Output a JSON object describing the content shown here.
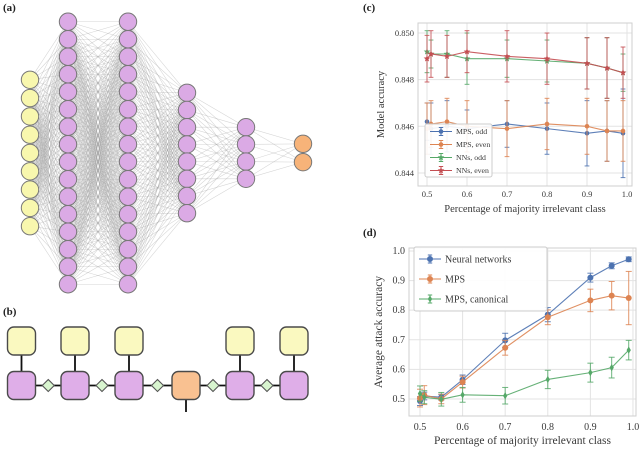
{
  "panels": {
    "a": {
      "label": "(a)"
    },
    "b": {
      "label": "(b)"
    },
    "c": {
      "label": "(c)"
    },
    "d": {
      "label": "(d)"
    }
  },
  "network_diagram": {
    "node_colors": {
      "input": "#f8f7ae",
      "hidden": "#dbaae5",
      "output": "#f7b379"
    },
    "node_border_color": "#787878",
    "edge_color": "#999999",
    "layers": [
      {
        "name": "input-layer",
        "type": "input",
        "count": 9
      },
      {
        "name": "hidden-layer-1",
        "type": "hidden",
        "count": 16
      },
      {
        "name": "hidden-layer-2",
        "type": "hidden",
        "count": 16
      },
      {
        "name": "hidden-layer-3",
        "type": "hidden",
        "count": 8
      },
      {
        "name": "hidden-layer-4",
        "type": "hidden",
        "count": 4
      },
      {
        "name": "output-layer",
        "type": "output",
        "count": 2
      }
    ]
  },
  "tensor_diagram": {
    "colors": {
      "site": "#dfaee8",
      "center_site": "#f9c191",
      "physical_site": "#faf9c0",
      "bond": "#d8f5cf",
      "border": "#4a4a4a",
      "line": "#111111"
    },
    "sites": [
      {
        "type": "site",
        "top_leg": true,
        "bottom_leg": false
      },
      {
        "type": "site",
        "top_leg": true,
        "bottom_leg": false
      },
      {
        "type": "site",
        "top_leg": true,
        "bottom_leg": false
      },
      {
        "type": "center_site",
        "top_leg": false,
        "bottom_leg": true
      },
      {
        "type": "site",
        "top_leg": true,
        "bottom_leg": false
      },
      {
        "type": "site",
        "top_leg": true,
        "bottom_leg": false
      }
    ],
    "bond_count": 5
  },
  "chart_data": [
    {
      "id": "c",
      "type": "line",
      "title": "",
      "xlabel": "Percentage of majority irrelevant class",
      "ylabel": "Model accuracy",
      "grid": true,
      "legend_position": "lower-left",
      "xlim": [
        0.4775,
        1.0125
      ],
      "ylim": [
        0.84344,
        0.85043
      ],
      "xticks": [
        0.5,
        0.6,
        0.7,
        0.8,
        0.9,
        1.0
      ],
      "xtick_labels": [
        "0.5",
        "0.6",
        "0.7",
        "0.8",
        "0.9",
        "1.0"
      ],
      "yticks": [
        0.844,
        0.846,
        0.848,
        0.85
      ],
      "ytick_labels": [
        "0.844",
        "0.846",
        "0.848",
        "0.850"
      ],
      "x": [
        0.5,
        0.51,
        0.55,
        0.6,
        0.7,
        0.8,
        0.9,
        0.95,
        0.99
      ],
      "series": [
        {
          "name": "MPS, odd",
          "color": "#4c72b0",
          "marker": "circle",
          "values": [
            0.8462,
            0.8459,
            0.846,
            0.8459,
            0.8461,
            0.8459,
            0.8457,
            0.8458,
            0.8457
          ],
          "yerr": [
            0.0008,
            0.0011,
            0.0011,
            0.0008,
            0.001,
            0.0011,
            0.0014,
            0.0013,
            0.0019
          ]
        },
        {
          "name": "MPS, even",
          "color": "#dd8452",
          "marker": "circle",
          "values": [
            0.8459,
            0.8461,
            0.8462,
            0.846,
            0.8459,
            0.8461,
            0.846,
            0.8458,
            0.8458
          ],
          "yerr": [
            0.0011,
            0.001,
            0.001,
            0.0011,
            0.0012,
            0.0011,
            0.0012,
            0.0013,
            0.0013
          ]
        },
        {
          "name": "NNs, odd",
          "color": "#55a868",
          "marker": "star",
          "values": [
            0.8492,
            0.8491,
            0.8491,
            0.8489,
            0.8489,
            0.8488,
            0.8487,
            0.8485,
            0.8483
          ],
          "yerr": [
            0.0009,
            0.0006,
            0.001,
            0.0011,
            0.0008,
            0.0009,
            0.0011,
            0.0013,
            0.0008
          ]
        },
        {
          "name": "NNs, even",
          "color": "#c44e52",
          "marker": "star",
          "values": [
            0.8489,
            0.8491,
            0.849,
            0.8492,
            0.849,
            0.8489,
            0.8487,
            0.8485,
            0.8483
          ],
          "yerr": [
            0.001,
            0.001,
            0.0009,
            0.0009,
            0.0011,
            0.0011,
            0.0011,
            0.0013,
            0.0011
          ]
        }
      ]
    },
    {
      "id": "d",
      "type": "line",
      "title": "",
      "xlabel": "Percentage of majority irrelevant class",
      "ylabel": "Average attack accuracy",
      "grid": true,
      "legend_position": "upper-left",
      "xlim": [
        0.4742,
        1.0071
      ],
      "ylim": [
        0.4425,
        1.0101
      ],
      "xticks": [
        0.5,
        0.6,
        0.7,
        0.8,
        0.9,
        1.0
      ],
      "xtick_labels": [
        "0.5",
        "0.6",
        "0.7",
        "0.8",
        "0.9",
        "1.0"
      ],
      "yticks": [
        0.5,
        0.6,
        0.7,
        0.8,
        0.9,
        1.0
      ],
      "ytick_labels": [
        "0.5",
        "0.6",
        "0.7",
        "0.8",
        "0.9",
        "1.0"
      ],
      "x": [
        0.5,
        0.51,
        0.55,
        0.6,
        0.7,
        0.8,
        0.9,
        0.95,
        0.99
      ],
      "series": [
        {
          "name": "Neural networks",
          "color": "#4c72b0",
          "marker": "circle",
          "values": [
            0.493,
            0.51,
            0.506,
            0.565,
            0.698,
            0.785,
            0.91,
            0.95,
            0.972
          ],
          "yerr": [
            0.015,
            0.013,
            0.01,
            0.016,
            0.024,
            0.024,
            0.015,
            0.01,
            0.008
          ]
        },
        {
          "name": "MPS",
          "color": "#dd8452",
          "marker": "circle",
          "values": [
            0.503,
            0.513,
            0.5,
            0.557,
            0.673,
            0.776,
            0.833,
            0.849,
            0.841
          ],
          "yerr": [
            0.03,
            0.032,
            0.016,
            0.02,
            0.025,
            0.025,
            0.038,
            0.048,
            0.09
          ]
        },
        {
          "name": "MPS, canonical",
          "color": "#55a868",
          "marker": "diamond",
          "values": [
            0.518,
            0.506,
            0.499,
            0.514,
            0.511,
            0.566,
            0.589,
            0.606,
            0.665
          ],
          "yerr": [
            0.026,
            0.022,
            0.023,
            0.025,
            0.028,
            0.031,
            0.032,
            0.035,
            0.033
          ]
        }
      ]
    }
  ],
  "style_colors": {
    "grid": "#e3e3e3",
    "spine": "#cfcfcf",
    "text": "#3a3a3a"
  }
}
